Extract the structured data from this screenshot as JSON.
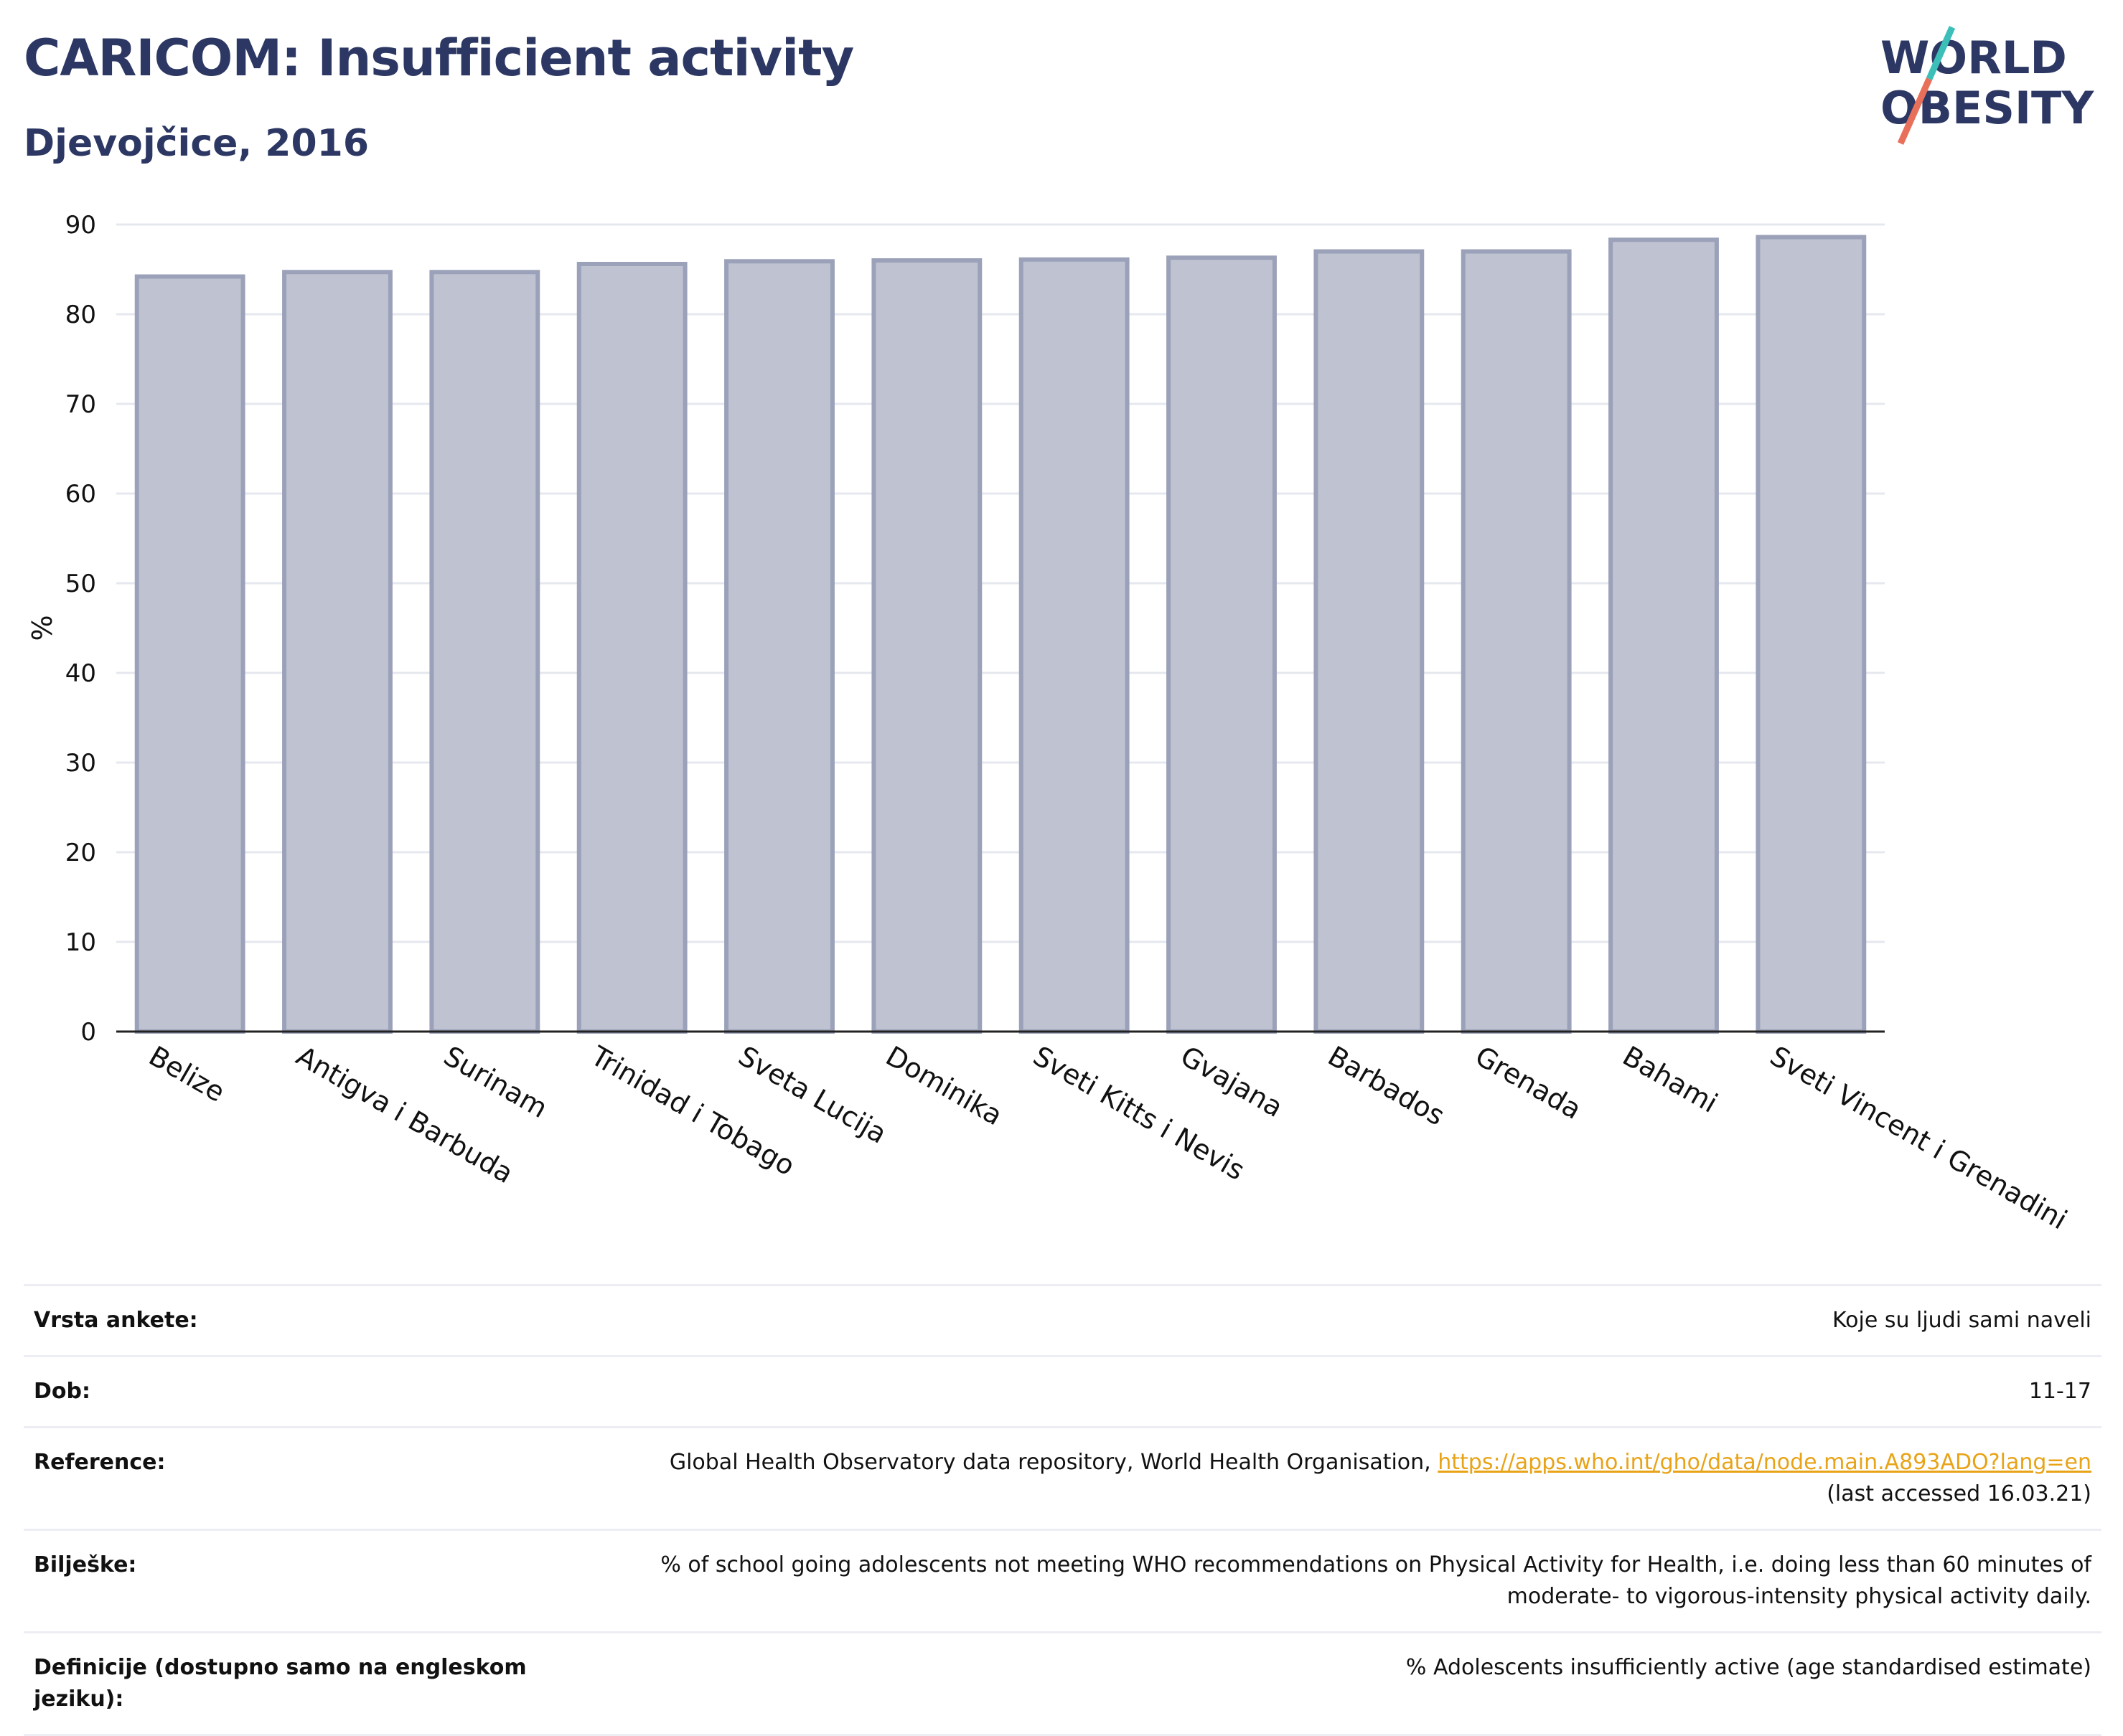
{
  "header": {
    "title": "CARICOM: Insufficient activity",
    "subtitle": "Djevojčice, 2016"
  },
  "logo": {
    "line1": "WORLD",
    "line2": "OBESITY"
  },
  "chart_data": {
    "type": "bar",
    "categories": [
      "Belize",
      "Antigva i Barbuda",
      "Surinam",
      "Trinidad i Tobago",
      "Sveta Lucija",
      "Dominika",
      "Sveti Kitts i Nevis",
      "Gvajana",
      "Barbados",
      "Grenada",
      "Bahami",
      "Sveti Vincent i Grenadini"
    ],
    "values": [
      84.2,
      84.7,
      84.7,
      85.6,
      85.9,
      86.0,
      86.1,
      86.3,
      87.0,
      87.0,
      88.3,
      88.6
    ],
    "ylabel": "%",
    "yticks": [
      0,
      10,
      20,
      30,
      40,
      50,
      60,
      70,
      80,
      90
    ],
    "ylim": [
      0,
      90
    ],
    "grid": true,
    "colors": {
      "bar_fill": "#bec2d1",
      "bar_stroke": "#9ba1b9",
      "grid": "#e6e8ef",
      "axis": "#222222",
      "title": "#2c3863"
    }
  },
  "meta": {
    "rows": [
      {
        "label": "Vrsta ankete:",
        "value": "Koje su ljudi sami naveli"
      },
      {
        "label": "Dob:",
        "value": "11-17"
      },
      {
        "label": "Reference:",
        "value": "Global Health Observatory data repository, World Health Organisation,",
        "link": "https://apps.who.int/gho/data/node.main.A893ADO?lang=en",
        "value2": "(last accessed 16.03.21)"
      },
      {
        "label": "Bilješke:",
        "value": "% of school going adolescents not meeting WHO recommendations on Physical Activity for Health, i.e. doing less than 60 minutes of moderate- to vigorous-intensity physical activity daily."
      },
      {
        "label": "Definicije (dostupno samo na engleskom jeziku):",
        "value": "% Adolescents insufficiently active (age standardised estimate)"
      }
    ]
  }
}
